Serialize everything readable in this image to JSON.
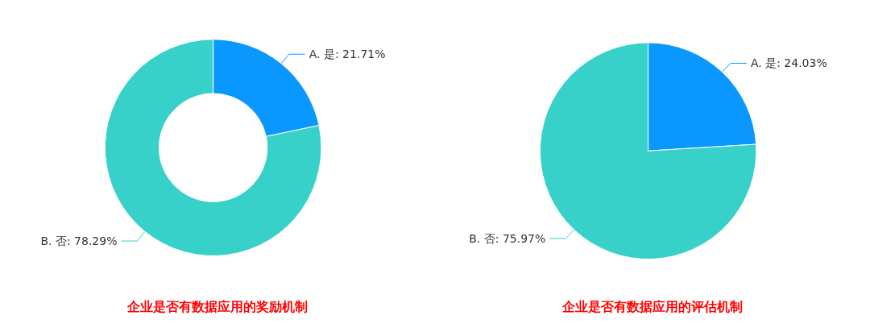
{
  "chart_data": [
    {
      "type": "donut",
      "title": "企业是否有数据应用的奖励机制",
      "categories": [
        "A. 是",
        "B. 否"
      ],
      "values": [
        21.71,
        78.29
      ],
      "value_labels": [
        "21.71%",
        "78.29%"
      ],
      "colors": [
        "#0a98fe",
        "#38d1ca"
      ]
    },
    {
      "type": "pie",
      "title": "企业是否有数据应用的评估机制",
      "categories": [
        "A. 是",
        "B. 否"
      ],
      "values": [
        24.03,
        75.97
      ],
      "value_labels": [
        "24.03%",
        "75.97%"
      ],
      "colors": [
        "#0a98fe",
        "#38d1ca"
      ]
    }
  ]
}
